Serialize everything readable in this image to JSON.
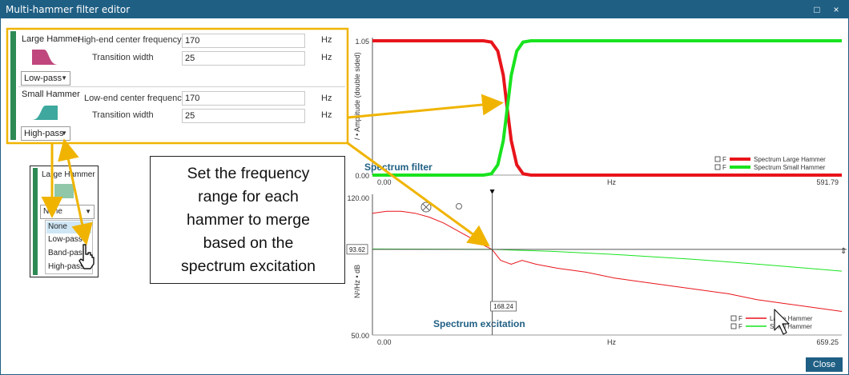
{
  "window": {
    "title": "Multi-hammer filter editor",
    "maximize_glyph": "□",
    "close_glyph": "×"
  },
  "filters": {
    "large": {
      "name": "Large Hammer",
      "filter_type": "Low-pass",
      "freq_label": "High-end center frequency",
      "freq_value": "170",
      "freq_unit": "Hz",
      "width_label": "Transition width",
      "width_value": "25",
      "width_unit": "Hz",
      "icon": "low-pass-filter-icon",
      "color": "#c0477e"
    },
    "small": {
      "name": "Small Hammer",
      "filter_type": "High-pass",
      "freq_label": "Low-end center frequency",
      "freq_value": "170",
      "freq_unit": "Hz",
      "width_label": "Transition width",
      "width_value": "25",
      "width_unit": "Hz",
      "icon": "high-pass-filter-icon",
      "color": "#3fa89e"
    }
  },
  "inset": {
    "name": "Large Hammer",
    "selected": "None",
    "options": [
      "None",
      "Low-pass",
      "Band-pass",
      "High-pass"
    ]
  },
  "callout": {
    "lines": [
      "Set the frequency",
      "range for each",
      "hammer to merge",
      "based on the",
      "spectrum excitation"
    ]
  },
  "close_label": "Close",
  "colors": {
    "titlebar": "#1f5f84",
    "highlight": "#f0b400",
    "large": "#e8141b",
    "small": "#19e31f",
    "sidebar": "#2e8a55"
  },
  "chart_data": [
    {
      "type": "line",
      "title": "Spectrum filter",
      "ylabel": "/ • Amplitude (double sided)",
      "xlabel": "Hz",
      "xlim": [
        0,
        591.79
      ],
      "ylim": [
        0,
        1.05
      ],
      "x_tick_labels": [
        "0.00",
        "591.79"
      ],
      "y_tick_labels": [
        "1.05",
        "0.00"
      ],
      "legend_position": "bottom-right",
      "series": [
        {
          "name": "Spectrum Large Hammer",
          "color": "#e8141b",
          "x": [
            0,
            140,
            150,
            158,
            165,
            170,
            175,
            182,
            190,
            200,
            591.79
          ],
          "y": [
            1.05,
            1.05,
            1.04,
            0.97,
            0.78,
            0.52,
            0.27,
            0.08,
            0.01,
            0,
            0
          ]
        },
        {
          "name": "Spectrum Small Hammer",
          "color": "#19e31f",
          "x": [
            0,
            140,
            150,
            158,
            165,
            170,
            175,
            182,
            190,
            200,
            591.79
          ],
          "y": [
            0,
            0,
            0.01,
            0.08,
            0.27,
            0.52,
            0.78,
            0.97,
            1.04,
            1.05,
            1.05
          ]
        }
      ],
      "legend_checkbox_label": "F"
    },
    {
      "type": "line",
      "title": "Spectrum excitation",
      "ylabel": "N²/Hz • dB",
      "xlabel": "Hz",
      "xlim": [
        0,
        659.25
      ],
      "ylim": [
        50,
        120
      ],
      "x_tick_labels": [
        "0.00",
        "659.25"
      ],
      "y_tick_labels": [
        "120.00",
        "50.00"
      ],
      "cursor_x_label": "168.24",
      "cursor_y_label": "93.62",
      "legend_position": "bottom-right",
      "series": [
        {
          "name": "Large Hammer",
          "color": "#e8141b",
          "x": [
            0,
            20,
            40,
            60,
            80,
            100,
            120,
            140,
            160,
            168,
            180,
            195,
            210,
            230,
            260,
            300,
            340,
            380,
            420,
            460,
            500,
            540,
            580,
            620,
            659.25
          ],
          "y": [
            112,
            113,
            113,
            112,
            110,
            107,
            103,
            99,
            95,
            93.6,
            88,
            86,
            88,
            86,
            84,
            82,
            79,
            77,
            75,
            73,
            71,
            68,
            66,
            64,
            62
          ]
        },
        {
          "name": "Small Hammer",
          "color": "#19e31f",
          "x": [
            0,
            100,
            168,
            250,
            350,
            450,
            550,
            659.25
          ],
          "y": [
            93.8,
            93.7,
            93.6,
            92.6,
            90.8,
            88.6,
            85.8,
            82.5
          ]
        }
      ],
      "legend_checkbox_label": "F"
    }
  ]
}
